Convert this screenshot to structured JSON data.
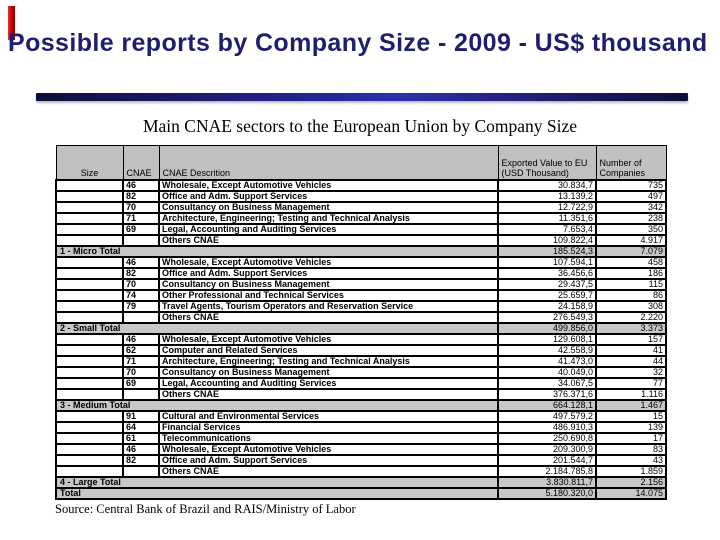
{
  "slide": {
    "title": "Possible reports by Company Size - 2009 - US$ thousand",
    "subtitle": "Main CNAE sectors to the European Union by Company Size",
    "source": "Source: Central Bank of Brazil and RAIS/Ministry of Labor",
    "title_color": "#1e1e6e",
    "accent_color": "#c40000",
    "divider_color": "#26269a"
  },
  "table": {
    "headers": [
      "Size",
      "CNAE",
      "CNAE Descrition",
      "Exported Value to EU (USD Thousand)",
      "Number of Companies"
    ],
    "rows": [
      {
        "kind": "data",
        "cnae": "46",
        "description": "Wholesale, Except Automotive Vehicles",
        "value": "30.834,7",
        "companies": "735"
      },
      {
        "kind": "data",
        "cnae": "82",
        "description": "Office and Adm. Support Services",
        "value": "13.139,2",
        "companies": "497"
      },
      {
        "kind": "data",
        "cnae": "70",
        "description": "Consultancy on Business Management",
        "value": "12.722,9",
        "companies": "342"
      },
      {
        "kind": "data",
        "cnae": "71",
        "description": "Architecture, Engineering; Testing and Technical Analysis",
        "value": "11.351,6",
        "companies": "238"
      },
      {
        "kind": "data",
        "cnae": "69",
        "description": "Legal, Accounting and Auditing Services",
        "value": "7.653,4",
        "companies": "350"
      },
      {
        "kind": "data",
        "cnae": "",
        "description": "Others CNAE",
        "value": "109.822,4",
        "companies": "4.917"
      },
      {
        "kind": "total",
        "label": "1 - Micro Total",
        "value": "185.524,3",
        "companies": "7.079"
      },
      {
        "kind": "data",
        "cnae": "46",
        "description": "Wholesale, Except Automotive Vehicles",
        "value": "107.594,1",
        "companies": "458"
      },
      {
        "kind": "data",
        "cnae": "82",
        "description": "Office and Adm. Support Services",
        "value": "36.456,6",
        "companies": "186"
      },
      {
        "kind": "data",
        "cnae": "70",
        "description": "Consultancy on Business Management",
        "value": "29.437,5",
        "companies": "115"
      },
      {
        "kind": "data",
        "cnae": "74",
        "description": "Other Professional and Technical Services",
        "value": "25.659,7",
        "companies": "86"
      },
      {
        "kind": "data",
        "cnae": "79",
        "description": "Travel Agents, Tourism Operators and Reservation Service",
        "value": "24.158,9",
        "companies": "308"
      },
      {
        "kind": "data",
        "cnae": "",
        "description": "Others CNAE",
        "value": "276.549,3",
        "companies": "2.220"
      },
      {
        "kind": "total",
        "label": "2 - Small Total",
        "value": "499.856,0",
        "companies": "3.373"
      },
      {
        "kind": "data",
        "cnae": "46",
        "description": "Wholesale, Except Automotive Vehicles",
        "value": "129.608,1",
        "companies": "157"
      },
      {
        "kind": "data",
        "cnae": "62",
        "description": "Computer and Related Services",
        "value": "42.558,9",
        "companies": "41"
      },
      {
        "kind": "data",
        "cnae": "71",
        "description": "Architecture, Engineering; Testing and Technical Analysis",
        "value": "41.473,0",
        "companies": "44"
      },
      {
        "kind": "data",
        "cnae": "70",
        "description": "Consultancy on Business Management",
        "value": "40.049,0",
        "companies": "32"
      },
      {
        "kind": "data",
        "cnae": "69",
        "description": "Legal, Accounting and Auditing Services",
        "value": "34.067,5",
        "companies": "77"
      },
      {
        "kind": "data",
        "cnae": "",
        "description": "Others CNAE",
        "value": "376.371,6",
        "companies": "1.116"
      },
      {
        "kind": "total",
        "label": "3 - Medium Total",
        "value": "664.128,1",
        "companies": "1.467"
      },
      {
        "kind": "data",
        "cnae": "91",
        "description": "Cultural and Environmental Services",
        "value": "497.579,2",
        "companies": "15"
      },
      {
        "kind": "data",
        "cnae": "64",
        "description": "Financial Services",
        "value": "486.910,3",
        "companies": "139"
      },
      {
        "kind": "data",
        "cnae": "61",
        "description": "Telecommunications",
        "value": "250.690,8",
        "companies": "17"
      },
      {
        "kind": "data",
        "cnae": "46",
        "description": "Wholesale, Except Automotive Vehicles",
        "value": "209.300,9",
        "companies": "83"
      },
      {
        "kind": "data",
        "cnae": "82",
        "description": "Office and Adm. Support Services",
        "value": "201.544,7",
        "companies": "43"
      },
      {
        "kind": "data",
        "cnae": "",
        "description": "Others CNAE",
        "value": "2.184.785,8",
        "companies": "1.859"
      },
      {
        "kind": "total",
        "label": "4 - Large Total",
        "value": "3.830.811,7",
        "companies": "2.156"
      },
      {
        "kind": "total",
        "label": "Total",
        "value": "5.180.320,0",
        "companies": "14.075"
      }
    ]
  }
}
